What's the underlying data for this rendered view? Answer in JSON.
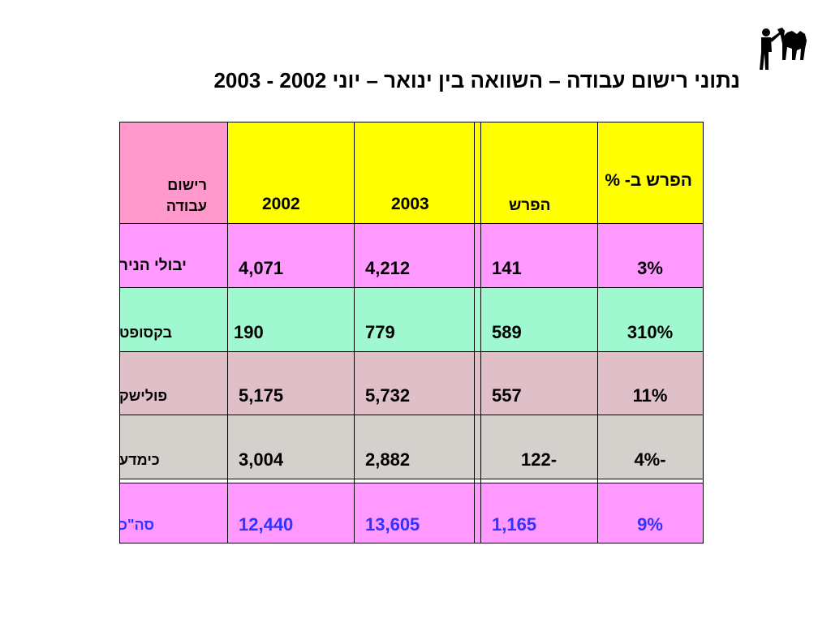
{
  "title": "נתוני רישום עבודה – השוואה בין ינואר – יוני 2002 - 2003",
  "logo": {
    "icon": "camel-rider-icon"
  },
  "header": {
    "label": "רישום עבודה",
    "col_2002": "2002",
    "col_2003": "2003",
    "col_diff": "הפרש",
    "col_pct": "הפרש ב- %"
  },
  "rows": [
    {
      "label": "יבולי הניר",
      "v2002": "4,071",
      "v2003": "4,212",
      "diff": "141",
      "pct": "3%",
      "color": "#ff99ff"
    },
    {
      "label": "בקסופט",
      "v2002": "190",
      "v2003": "779",
      "diff": "589",
      "pct": "310%",
      "color": "#a0f8d0"
    },
    {
      "label": "פולישק",
      "v2002": "5,175",
      "v2003": "5,732",
      "diff": "557",
      "pct": "11%",
      "color": "#e0c0c8"
    },
    {
      "label": "כימדע",
      "v2002": "3,004",
      "v2003": "2,882",
      "diff": "-122",
      "pct": "-4%",
      "color": "#d4d0cc"
    }
  ],
  "total": {
    "label": "סה\"כ",
    "v2002": "12,440",
    "v2003": "13,605",
    "diff": "1,165",
    "pct": "9%",
    "color": "#ff99ff",
    "text_color": "#3333ff"
  },
  "colors": {
    "header_label_bg": "#ff99cc",
    "header_bg": "#ffff00"
  }
}
